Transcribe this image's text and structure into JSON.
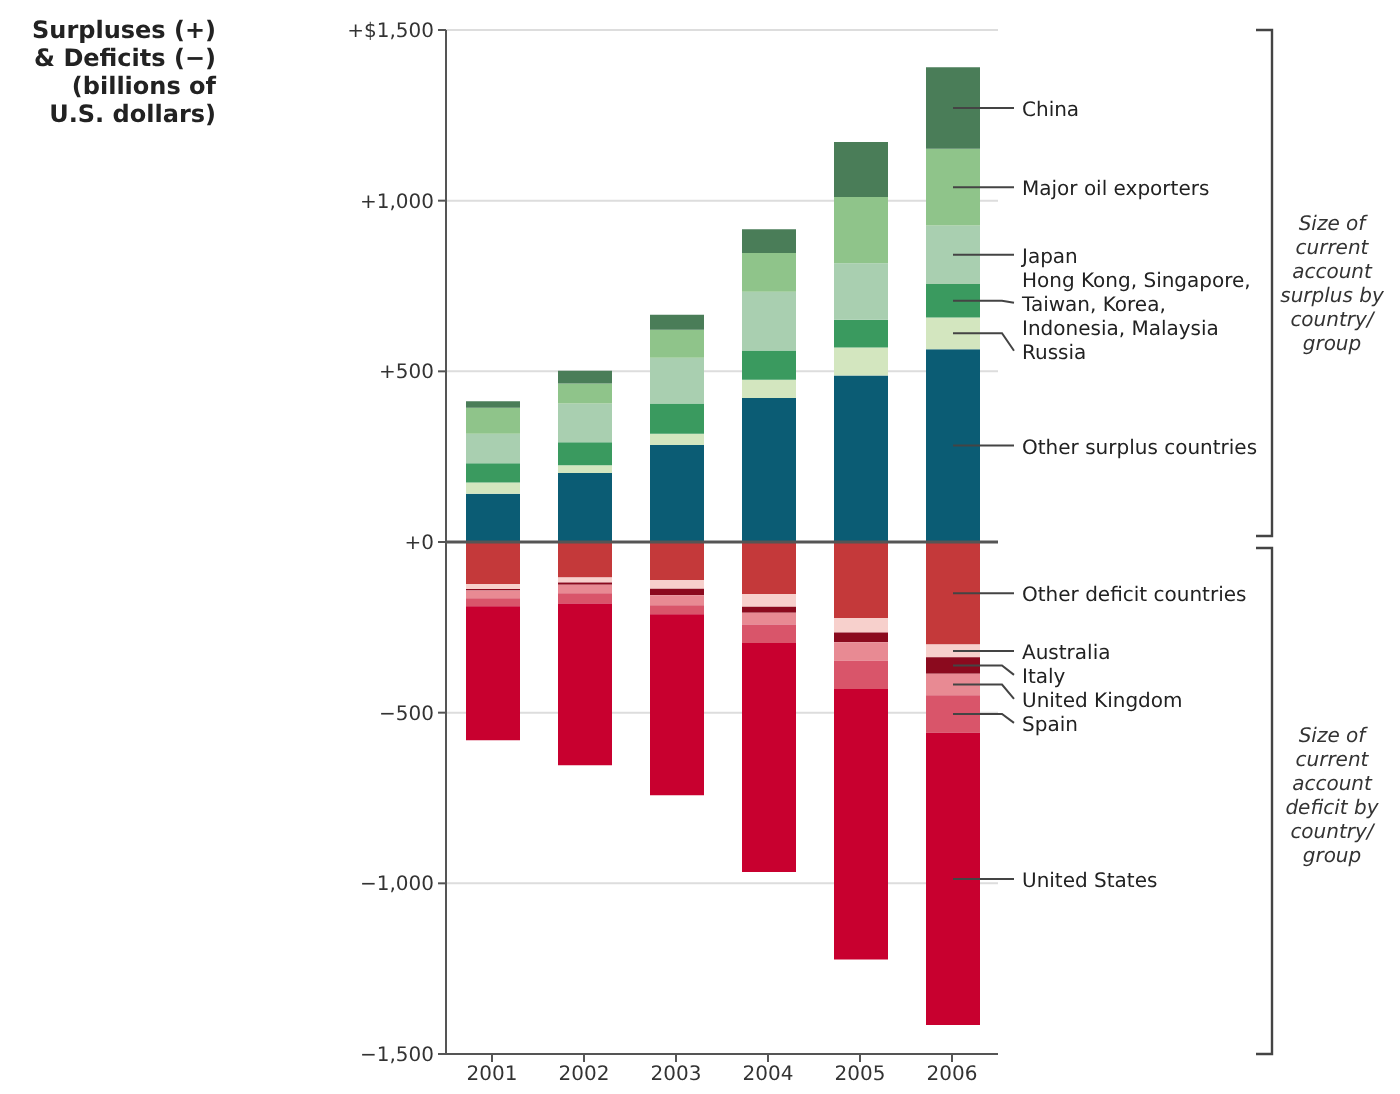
{
  "chart_data": {
    "type": "bar",
    "stacked": true,
    "title": "Surpluses (+) & Deficits (−) (billions of U.S. dollars)",
    "categories": [
      "2001",
      "2002",
      "2003",
      "2004",
      "2005",
      "2006"
    ],
    "series": [
      {
        "name": "Other surplus countries",
        "color": "#0b5c74",
        "values": [
          141,
          202,
          284,
          422,
          488,
          565
        ]
      },
      {
        "name": "Russia",
        "color": "#d3e6bf",
        "values": [
          33,
          23,
          33,
          53,
          82,
          93
        ]
      },
      {
        "name": "Hong Kong, Singapore, Taiwan, Korea, Indonesia, Malaysia",
        "color": "#3a9a5f",
        "values": [
          57,
          67,
          89,
          86,
          81,
          98
        ]
      },
      {
        "name": "Japan",
        "color": "#a9cfb0",
        "values": [
          86,
          114,
          134,
          172,
          166,
          171
        ]
      },
      {
        "name": "Major oil exporters",
        "color": "#8fc48a",
        "values": [
          76,
          58,
          82,
          114,
          194,
          225
        ]
      },
      {
        "name": "China",
        "color": "#4a7d58",
        "values": [
          19,
          38,
          44,
          69,
          161,
          239
        ]
      },
      {
        "name": "Other deficit countries",
        "color": "#c4393a",
        "values": [
          -123,
          -104,
          -112,
          -152,
          -223,
          -300
        ]
      },
      {
        "name": "Australia",
        "color": "#f7d0cc",
        "values": [
          -15,
          -15,
          -25,
          -38,
          -42,
          -38
        ]
      },
      {
        "name": "Italy",
        "color": "#8b0a1e",
        "values": [
          -4,
          -6,
          -19,
          -17,
          -29,
          -48
        ]
      },
      {
        "name": "United Kingdom",
        "color": "#e88a93",
        "values": [
          -23,
          -25,
          -29,
          -35,
          -54,
          -63
        ]
      },
      {
        "name": "Spain",
        "color": "#d9556a",
        "values": [
          -23,
          -30,
          -27,
          -54,
          -83,
          -110
        ]
      },
      {
        "name": "United States",
        "color": "#c8002f",
        "values": [
          -393,
          -474,
          -530,
          -671,
          -792,
          -856
        ]
      }
    ],
    "ylim": [
      -1500,
      1500
    ],
    "yticks": [
      {
        "value": -1500,
        "label": "−1,500"
      },
      {
        "value": -1000,
        "label": "−1,000"
      },
      {
        "value": -500,
        "label": "−500"
      },
      {
        "value": 0,
        "label": "+0"
      },
      {
        "value": 500,
        "label": "+500"
      },
      {
        "value": 1000,
        "label": "+1,000"
      },
      {
        "value": 1500,
        "label": "+$1,500"
      }
    ],
    "grid": "y",
    "ref_lines": [
      {
        "axis": "y",
        "value": 0,
        "color": "#555555"
      }
    ],
    "annotations": [
      "Size of current account surplus by country/ group",
      "Size of current account deficit by country/ group"
    ]
  }
}
